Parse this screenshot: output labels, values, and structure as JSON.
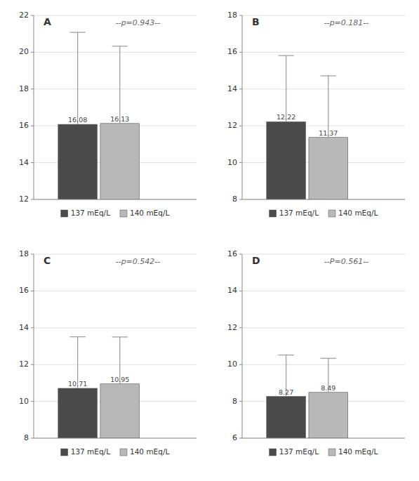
{
  "chart_data": [
    {
      "type": "bar",
      "title": "A",
      "annotations": [
        "--p=0.943--"
      ],
      "categories": [
        null
      ],
      "series": [
        {
          "name": "137 mEq/L",
          "color": "#4a4a4a",
          "values": [
            16.08
          ],
          "errors": [
            5.0
          ]
        },
        {
          "name": "140 mEq/L",
          "color": "#b8b8b8",
          "values": [
            16.13
          ],
          "errors": [
            4.2
          ]
        }
      ],
      "ylim": [
        12,
        22
      ],
      "yticks": [
        12,
        14,
        16,
        18,
        20,
        22
      ],
      "grid": true,
      "legend": "bottom",
      "data_labels": true,
      "tick_labels": "y"
    },
    {
      "type": "bar",
      "title": "B",
      "annotations": [
        "--p=0.181--"
      ],
      "categories": [
        null
      ],
      "series": [
        {
          "name": "137 mEq/L",
          "color": "#4a4a4a",
          "values": [
            12.22
          ],
          "errors": [
            3.6
          ]
        },
        {
          "name": "140 mEq/L",
          "color": "#b8b8b8",
          "values": [
            11.37
          ],
          "errors": [
            3.35
          ]
        }
      ],
      "ylim": [
        8,
        18
      ],
      "yticks": [
        8,
        10,
        12,
        14,
        16,
        18
      ],
      "grid": true,
      "legend": "bottom",
      "data_labels": true,
      "tick_labels": "y"
    },
    {
      "type": "bar",
      "title": "C",
      "annotations": [
        "--p=0.542--"
      ],
      "categories": [
        null
      ],
      "series": [
        {
          "name": "137 mEq/L",
          "color": "#4a4a4a",
          "values": [
            10.71
          ],
          "errors": [
            2.8
          ]
        },
        {
          "name": "140 mEq/L",
          "color": "#b8b8b8",
          "values": [
            10.95
          ],
          "errors": [
            2.55
          ]
        }
      ],
      "ylim": [
        8,
        18
      ],
      "yticks": [
        8,
        10,
        12,
        14,
        16,
        18
      ],
      "grid": true,
      "legend": "bottom",
      "data_labels": true,
      "tick_labels": "y"
    },
    {
      "type": "bar",
      "title": "D",
      "annotations": [
        "--P=0.561--"
      ],
      "categories": [
        null
      ],
      "series": [
        {
          "name": "137 mEq/L",
          "color": "#4a4a4a",
          "values": [
            8.27
          ],
          "errors": [
            2.25
          ]
        },
        {
          "name": "140 mEq/L",
          "color": "#b8b8b8",
          "values": [
            8.49
          ],
          "errors": [
            1.85
          ]
        }
      ],
      "ylim": [
        6,
        16
      ],
      "yticks": [
        6,
        8,
        10,
        12,
        14,
        16
      ],
      "grid": true,
      "legend": "bottom",
      "data_labels": true,
      "tick_labels": "y"
    }
  ]
}
